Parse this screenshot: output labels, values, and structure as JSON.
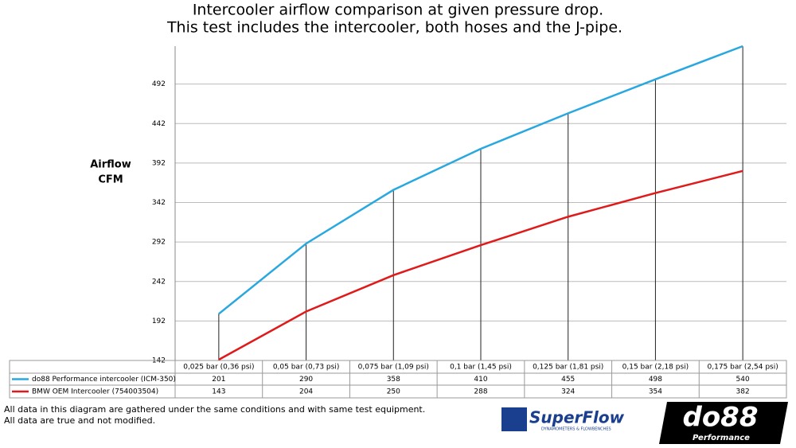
{
  "chart_data": {
    "type": "line",
    "title": [
      "Intercooler airflow comparison at given pressure drop.",
      "This test includes the intercooler, both hoses and the J-pipe."
    ],
    "ylabel": [
      "Airflow",
      "CFM"
    ],
    "categories": [
      "0,025 bar (0,36 psi)",
      "0,05 bar (0,73 psi)",
      "0,075 bar (1,09 psi)",
      "0,1 bar (1,45 psi)",
      "0,125 bar (1,81 psi)",
      "0,15 bar (2,18 psi)",
      "0,175 bar (2,54 psi)"
    ],
    "series": [
      {
        "name": "do88 Performance intercooler (ICM-350)",
        "color": "#29a8e0",
        "values": [
          201,
          290,
          358,
          410,
          455,
          498,
          540
        ]
      },
      {
        "name": "BMW OEM Intercooler (754003504)",
        "color": "#e01a1a",
        "values": [
          143,
          204,
          250,
          288,
          324,
          354,
          382
        ]
      }
    ],
    "ylim": [
      142,
      540
    ],
    "yticks": [
      142,
      192,
      242,
      292,
      342,
      392,
      442,
      492
    ],
    "grid": true
  },
  "notes": [
    "All data in this diagram are gathered under the same conditions and with same test equipment.",
    "All data are true and not modified."
  ],
  "logos": {
    "superflow": "SuperFlow",
    "superflow_sub": "DYNAMOMETERS & FLOWBENCHES",
    "do88": "do88",
    "do88_sub": "Performance"
  }
}
